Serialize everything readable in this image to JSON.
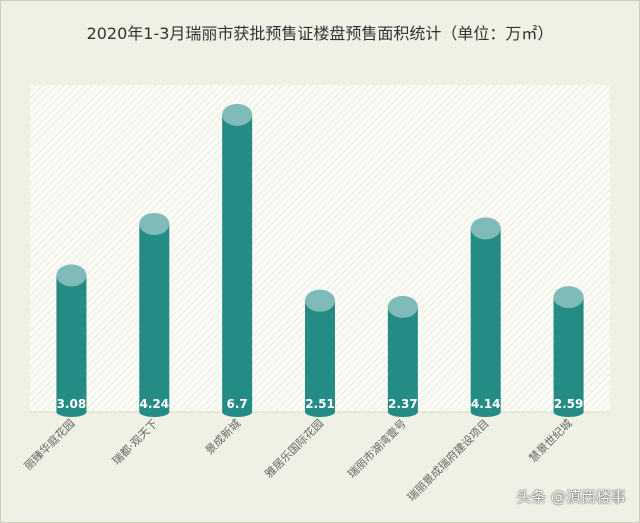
{
  "chart_data": {
    "type": "bar",
    "title": "2020年1-3月瑞丽市获批预售证楼盘预售面积统计（单位：万㎡）",
    "categories": [
      "丽臻华庭花园",
      "瑞都·观天下",
      "景成新城",
      "雅居乐国际花园",
      "瑞丽市湖湾壹号",
      "瑞丽景成瑞府建设项目",
      "慧景世纪城"
    ],
    "values": [
      3.08,
      4.24,
      6.7,
      2.51,
      2.37,
      4.14,
      2.59
    ],
    "value_labels": [
      "3.08",
      "4.24",
      "6.7",
      "2.51",
      "2.37",
      "4.14",
      "2.59"
    ],
    "ylim": [
      0,
      6.9
    ],
    "xlabel": "",
    "ylabel": "",
    "grid": false,
    "colors": {
      "bar_body": "#258b85",
      "bar_top": "#7fbcb9",
      "plot_background": "#fafbf6",
      "plot_hatch": "#ebeedf"
    }
  },
  "watermark": "头条 @滇西楼事"
}
